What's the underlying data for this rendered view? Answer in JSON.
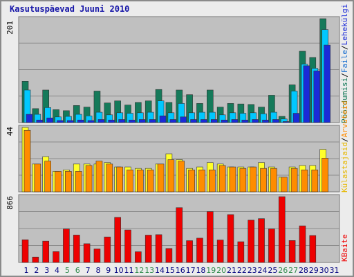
{
  "title": "Kasutuspäevad Juuni 2010",
  "colors": {
    "frame_bg": "#ececec",
    "plot_bg": "#c0c0c0",
    "grid": "#8c8c8c",
    "visits_green": "#157a5a",
    "files_cyan": "#00c8ff",
    "pages_blue": "#1a2ad8",
    "hits_yellow": "#ffff2a",
    "visitors_orange": "#ff8c00",
    "kbytes_red": "#ee0000",
    "weekday_tick": "#000080",
    "weekend_tick": "#2d8a4a"
  },
  "chart_data": {
    "type": "bar",
    "title": "Kasutuspäevad Juuni 2010",
    "x": [
      "1",
      "2",
      "3",
      "4",
      "5",
      "6",
      "7",
      "8",
      "9",
      "10",
      "11",
      "12",
      "13",
      "14",
      "15",
      "16",
      "17",
      "18",
      "19",
      "20",
      "21",
      "22",
      "23",
      "24",
      "25",
      "26",
      "27",
      "28",
      "29",
      "30",
      "31"
    ],
    "weekend_days": [
      "5",
      "6",
      "12",
      "13",
      "19",
      "20",
      "26",
      "27"
    ],
    "panels": [
      {
        "name": "top",
        "ymax_label": "201",
        "ylim": [
          0,
          201
        ],
        "legend": [
          "Pöördumisi",
          "/",
          "Faile",
          "/",
          "Lehekülgi"
        ],
        "series": [
          {
            "name": "Pöördumisi",
            "color": "#157a5a",
            "values": [
              80,
              27,
              63,
              25,
              23,
              33,
              30,
              61,
              38,
              42,
              34,
              39,
              42,
              64,
              39,
              63,
              54,
              37,
              63,
              30,
              37,
              36,
              35,
              30,
              53,
              12,
              73,
              138,
              126,
              201,
              0
            ]
          },
          {
            "name": "Faile",
            "color": "#00c8ff",
            "values": [
              63,
              16,
              29,
              11,
              12,
              16,
              13,
              20,
              15,
              19,
              18,
              19,
              20,
              42,
              19,
              37,
              19,
              20,
              20,
              15,
              19,
              18,
              19,
              17,
              20,
              7,
              61,
              113,
              105,
              180,
              0
            ]
          },
          {
            "name": "Lehekülgi",
            "color": "#1a2ad8",
            "values": [
              16,
              5,
              9,
              4,
              4,
              5,
              4,
              6,
              5,
              6,
              5,
              6,
              6,
              13,
              6,
              11,
              6,
              6,
              6,
              5,
              6,
              5,
              6,
              5,
              6,
              2,
              18,
              110,
              100,
              150,
              0
            ]
          }
        ]
      },
      {
        "name": "middle",
        "ymax_label": "44",
        "ylim": [
          0,
          44
        ],
        "legend": [
          "Külastajaid",
          "/",
          "Arvuteid"
        ],
        "series": [
          {
            "name": "Külastajaid",
            "color": "#ffff2a",
            "values": [
              44,
              19,
              24,
              14,
              15,
              19,
              19,
              19,
              20,
              17,
              17,
              16,
              16,
              19,
              26,
              22,
              16,
              17,
              20,
              19,
              17,
              17,
              17,
              20,
              17,
              10,
              17,
              18,
              18,
              29,
              0
            ]
          },
          {
            "name": "Arvuteid",
            "color": "#ff8c00",
            "values": [
              42,
              19,
              21,
              14,
              14,
              14,
              18,
              21,
              19,
              17,
              15,
              15,
              15,
              19,
              22,
              21,
              15,
              15,
              15,
              18,
              17,
              16,
              17,
              16,
              16,
              10,
              16,
              15,
              15,
              23,
              0
            ]
          }
        ]
      },
      {
        "name": "bottom",
        "ymax_label": "866",
        "ylim": [
          0,
          866
        ],
        "legend": [
          "KBaite"
        ],
        "series": [
          {
            "name": "KBaite",
            "color": "#ee0000",
            "values": [
              299,
              71,
              281,
              143,
              440,
              361,
              247,
              179,
              336,
              594,
              428,
              141,
              360,
              366,
              184,
              722,
              287,
              320,
              670,
              296,
              630,
              273,
              557,
              577,
              441,
              866,
              289,
              482,
              355,
              0,
              0
            ]
          }
        ]
      }
    ]
  }
}
